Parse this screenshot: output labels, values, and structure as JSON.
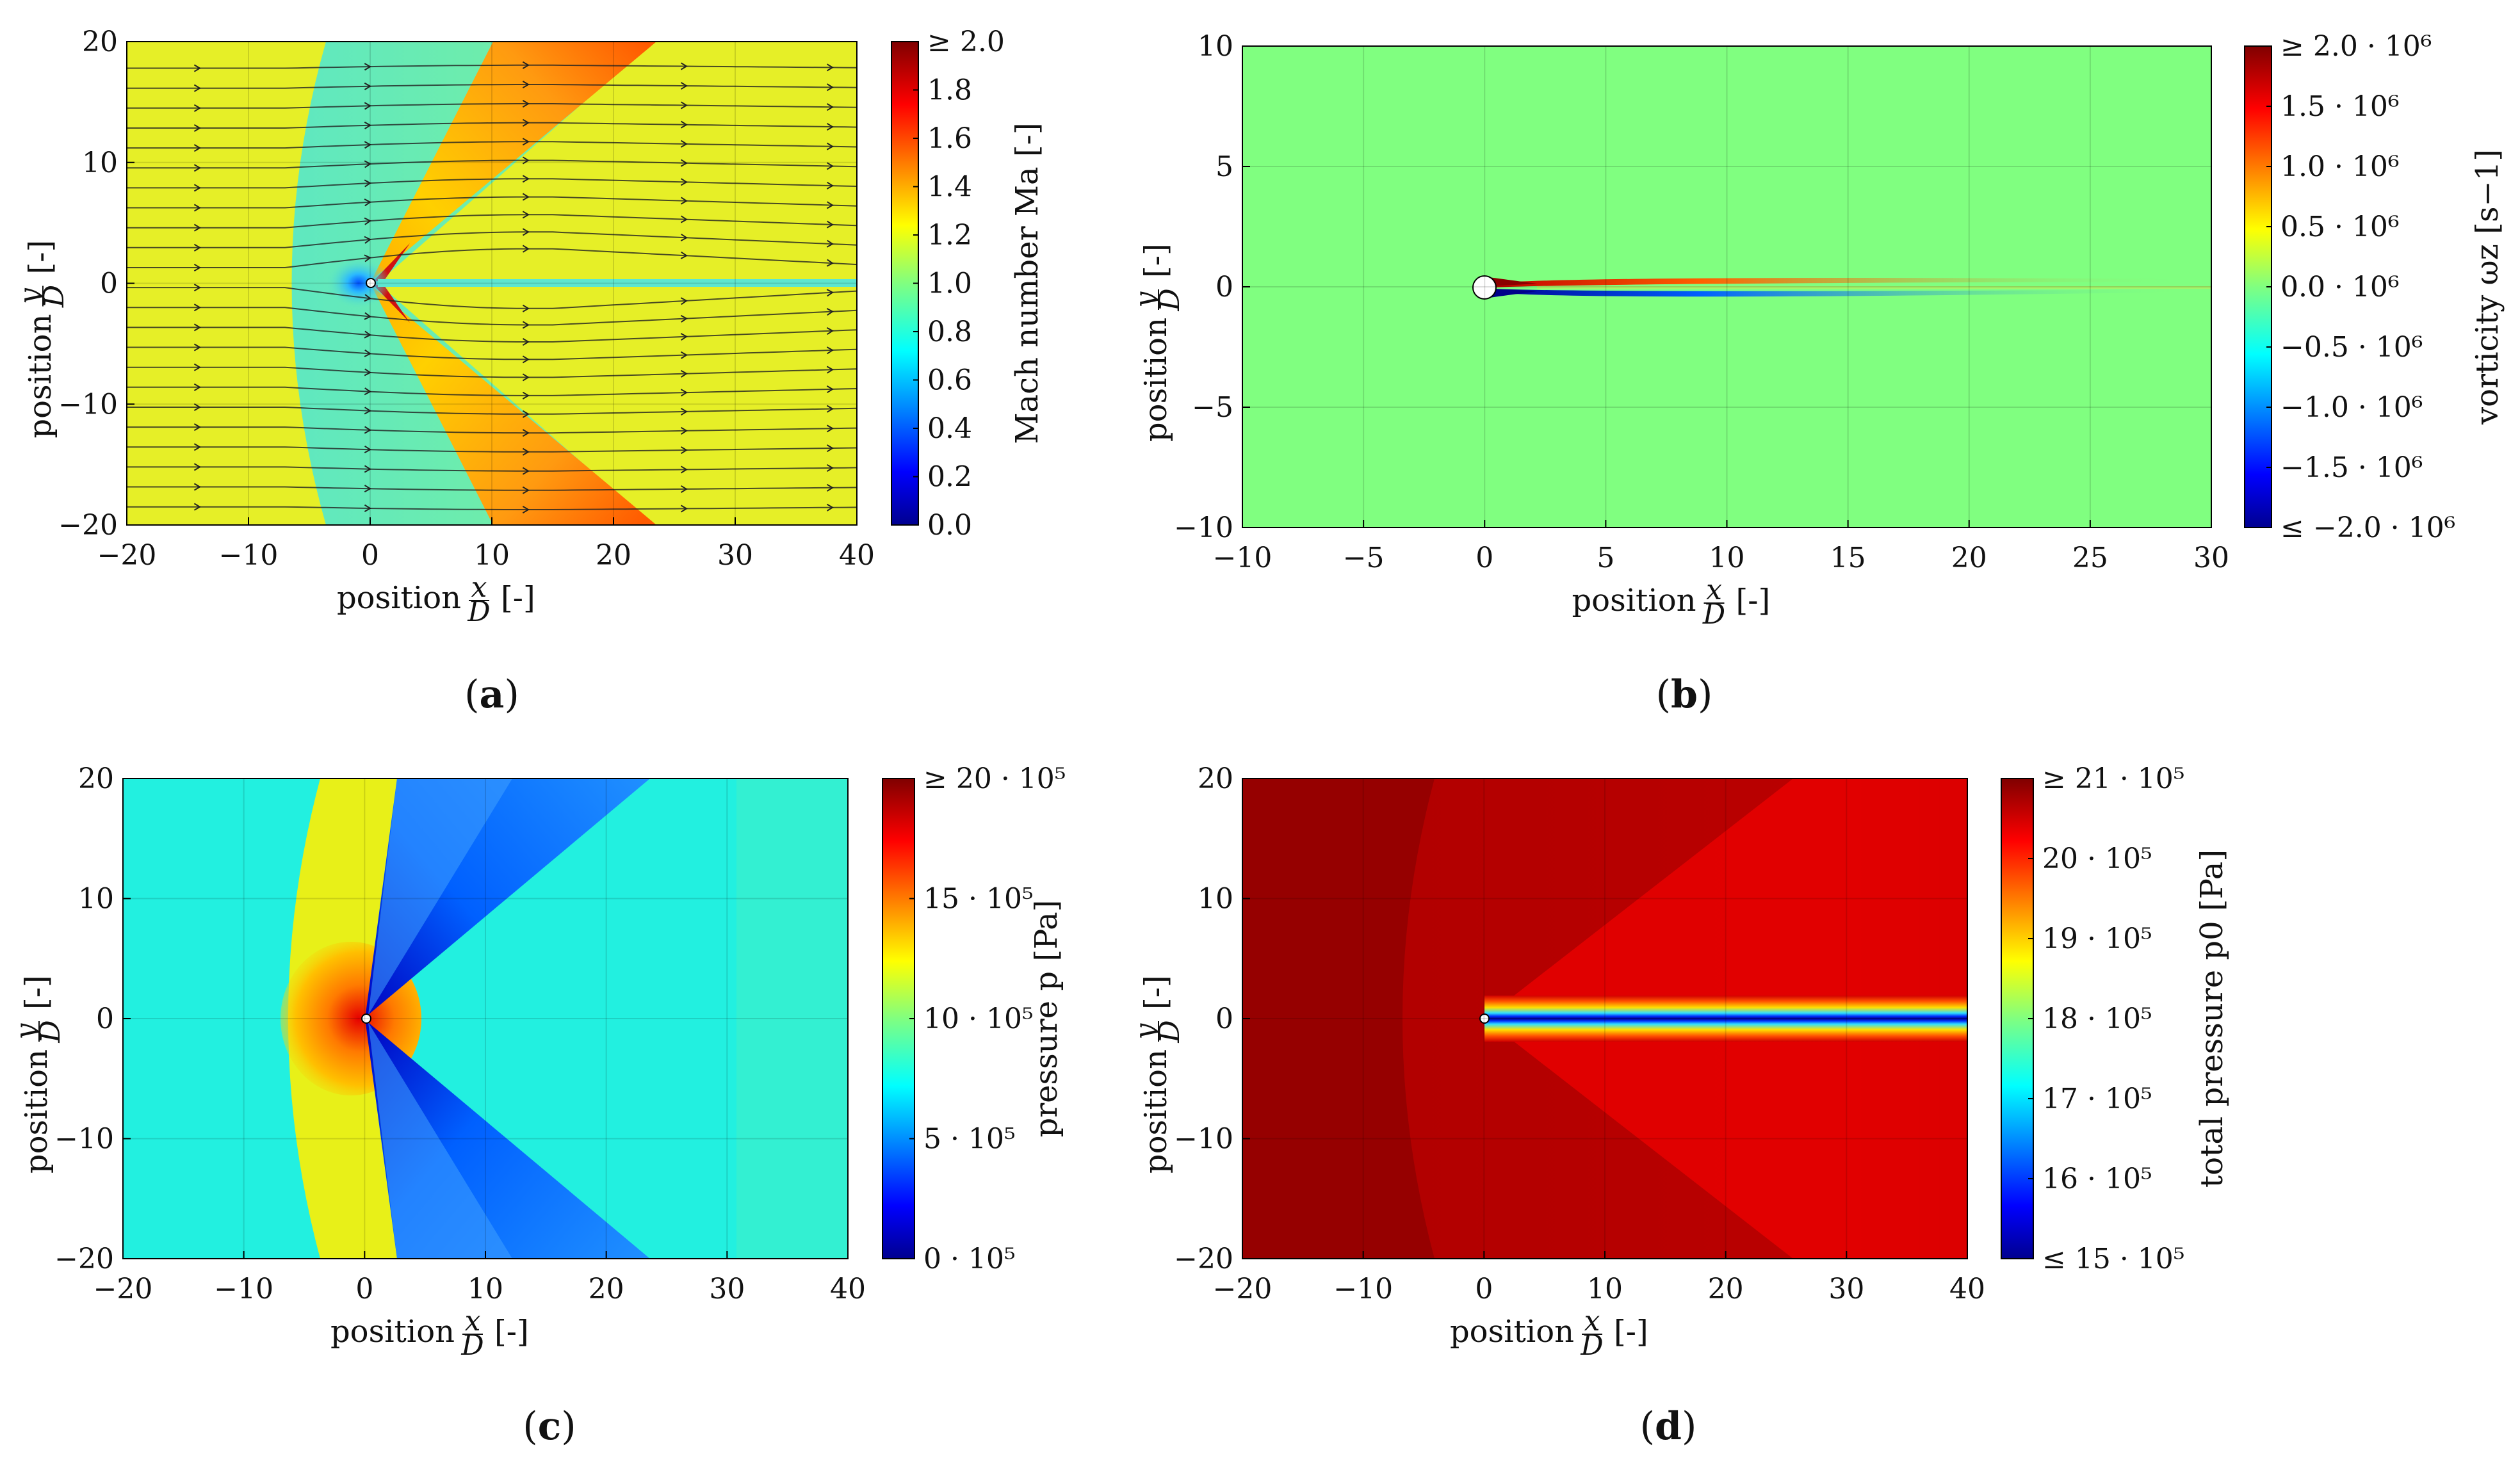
{
  "chart_data": [
    {
      "id": "a",
      "type": "heatmap",
      "caption": "a",
      "xlabel": "position",
      "ylabel": "position",
      "x_unit": "[-]",
      "y_unit": "[-]",
      "x_frac": {
        "num": "x",
        "den": "D"
      },
      "y_frac": {
        "num": "y",
        "den": "D"
      },
      "xlim": [
        -20,
        40
      ],
      "ylim": [
        -20,
        20
      ],
      "xticks": [
        -20,
        -10,
        0,
        10,
        20,
        30,
        40
      ],
      "yticks": [
        -20,
        -10,
        0,
        10,
        20
      ],
      "xtick_labels": [
        "−20",
        "−10",
        "0",
        "10",
        "20",
        "30",
        "40"
      ],
      "ytick_labels": [
        "−20",
        "−10",
        "0",
        "10",
        "20"
      ],
      "colorbar": {
        "label": "Mach number Ma [-]",
        "range": [
          0,
          2.0
        ],
        "tick_labels": [
          "≥ 2.0",
          "1.8",
          "1.6",
          "1.4",
          "1.2",
          "1.0",
          "0.8",
          "0.6",
          "0.4",
          "0.2",
          "0.0"
        ]
      },
      "field": {
        "freestream_mach": 1.3,
        "bow_shock_x_at_axis": -7,
        "bow_shock_x_at_edge": -3.5,
        "post_shock_mach": 0.85,
        "expansion_peak_mach": 1.8,
        "expansion_edge_x_at_top": 23,
        "wake_mach": 0.9,
        "streamlines": true
      }
    },
    {
      "id": "b",
      "type": "heatmap",
      "caption": "b",
      "xlabel": "position",
      "ylabel": "position",
      "x_unit": "[-]",
      "y_unit": "[-]",
      "x_frac": {
        "num": "x",
        "den": "D"
      },
      "y_frac": {
        "num": "y",
        "den": "D"
      },
      "xlim": [
        -10,
        30
      ],
      "ylim": [
        -10,
        10
      ],
      "xticks": [
        -10,
        -5,
        0,
        5,
        10,
        15,
        20,
        25,
        30
      ],
      "yticks": [
        -10,
        -5,
        0,
        5,
        10
      ],
      "xtick_labels": [
        "−10",
        "−5",
        "0",
        "5",
        "10",
        "15",
        "20",
        "25",
        "30"
      ],
      "ytick_labels": [
        "−10",
        "−5",
        "0",
        "5",
        "10"
      ],
      "colorbar": {
        "label": "vorticity ωz [s−1]",
        "range": [
          -2000000,
          2000000
        ],
        "tick_labels": [
          "≥ 2.0 · 10⁶",
          "1.5 · 10⁶",
          "1.0 · 10⁶",
          "0.5 · 10⁶",
          "0.0 · 10⁶",
          "−0.5 · 10⁶",
          "−1.0 · 10⁶",
          "−1.5 · 10⁶",
          "≤ −2.0 · 10⁶"
        ]
      },
      "field": {
        "background_vorticity": 0,
        "shear_layer_length": 28
      }
    },
    {
      "id": "c",
      "type": "heatmap",
      "caption": "c",
      "xlabel": "position",
      "ylabel": "position",
      "x_unit": "[-]",
      "y_unit": "[-]",
      "x_frac": {
        "num": "x",
        "den": "D"
      },
      "y_frac": {
        "num": "y",
        "den": "D"
      },
      "xlim": [
        -20,
        40
      ],
      "ylim": [
        -20,
        20
      ],
      "xticks": [
        -20,
        -10,
        0,
        10,
        20,
        30,
        40
      ],
      "yticks": [
        -20,
        -10,
        0,
        10,
        20
      ],
      "xtick_labels": [
        "−20",
        "−10",
        "0",
        "10",
        "20",
        "30",
        "40"
      ],
      "ytick_labels": [
        "−20",
        "−10",
        "0",
        "10",
        "20"
      ],
      "colorbar": {
        "label": "pressure p [Pa]",
        "range": [
          0,
          2000000
        ],
        "tick_labels": [
          "≥ 20 · 10⁵",
          "15 · 10⁵",
          "10 · 10⁵",
          "5 · 10⁵",
          "0 · 10⁵"
        ]
      },
      "field": {
        "freestream_pressure": 850000,
        "post_shock_pressure": 1250000,
        "stagnation_pressure": 2000000,
        "expansion_min_pressure": 150000
      }
    },
    {
      "id": "d",
      "type": "heatmap",
      "caption": "d",
      "xlabel": "position",
      "ylabel": "position",
      "x_unit": "[-]",
      "y_unit": "[-]",
      "x_frac": {
        "num": "x",
        "den": "D"
      },
      "y_frac": {
        "num": "y",
        "den": "D"
      },
      "xlim": [
        -20,
        40
      ],
      "ylim": [
        -20,
        20
      ],
      "xticks": [
        -20,
        -10,
        0,
        10,
        20,
        30,
        40
      ],
      "yticks": [
        -20,
        -10,
        0,
        10,
        20
      ],
      "xtick_labels": [
        "−20",
        "−10",
        "0",
        "10",
        "20",
        "30",
        "40"
      ],
      "ytick_labels": [
        "−20",
        "−10",
        "0",
        "10",
        "20"
      ],
      "colorbar": {
        "label": "total pressure p0 [Pa]",
        "range": [
          1500000,
          2100000
        ],
        "tick_labels": [
          "≥ 21 · 10⁵",
          "20 · 10⁵",
          "19 · 10⁵",
          "18 · 10⁵",
          "17 · 10⁵",
          "16 · 10⁵",
          "≤ 15 · 10⁵"
        ]
      },
      "field": {
        "freestream_total_pressure": 2100000,
        "post_shock_total_pressure": 2030000,
        "wake_core_total_pressure": 1500000
      }
    }
  ]
}
